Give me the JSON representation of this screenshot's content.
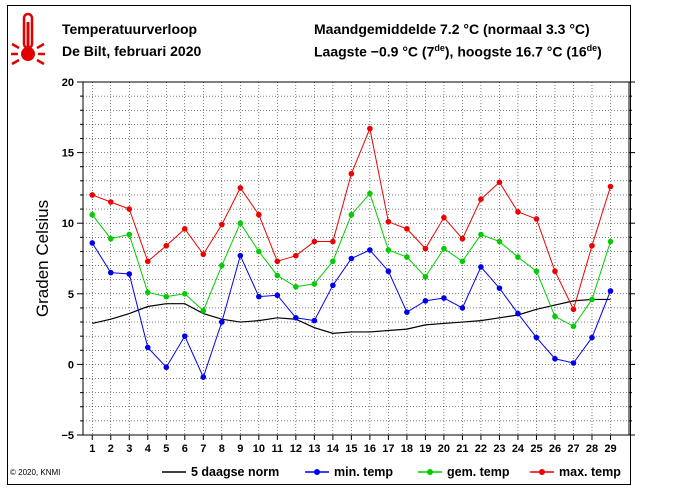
{
  "header": {
    "title": "Temperatuurverloop",
    "subtitle": "De Bilt, februari 2020",
    "monthly_avg": "Maandgemiddelde 7.2 °C (normaal 3.3 °C)",
    "extremes_pre": "Laagste −0.9 °C (7",
    "extremes_sup1": "de",
    "extremes_mid": "), hoogste 16.7 °C (16",
    "extremes_sup2": "de",
    "extremes_post": ")"
  },
  "copyright": "© 2020, KNMI",
  "chart_data": {
    "type": "line",
    "xlabel": "",
    "ylabel": "Graden Celsius",
    "ylim": [
      -5,
      20
    ],
    "yticks": [
      -5,
      0,
      5,
      10,
      15,
      20
    ],
    "x": [
      1,
      2,
      3,
      4,
      5,
      6,
      7,
      8,
      9,
      10,
      11,
      12,
      13,
      14,
      15,
      16,
      17,
      18,
      19,
      20,
      21,
      22,
      23,
      24,
      25,
      26,
      27,
      28,
      29
    ],
    "legend": "bottom",
    "series": [
      {
        "name": "5 daagse norm",
        "color": "#000000",
        "markers": false,
        "values": [
          2.9,
          3.2,
          3.6,
          4.1,
          4.3,
          4.3,
          3.6,
          3.2,
          3.0,
          3.1,
          3.3,
          3.2,
          2.6,
          2.2,
          2.3,
          2.3,
          2.4,
          2.5,
          2.8,
          2.9,
          3.0,
          3.1,
          3.3,
          3.5,
          3.9,
          4.2,
          4.5,
          4.6,
          4.6
        ]
      },
      {
        "name": "min. temp",
        "color": "#0000ee",
        "markers": true,
        "values": [
          8.6,
          6.5,
          6.4,
          1.2,
          -0.2,
          2.0,
          -0.9,
          3.0,
          7.7,
          4.8,
          4.9,
          3.3,
          3.1,
          5.6,
          7.5,
          8.1,
          6.6,
          3.7,
          4.5,
          4.7,
          4.0,
          6.9,
          5.4,
          3.6,
          1.9,
          0.4,
          0.1,
          1.9,
          5.2
        ]
      },
      {
        "name": "gem. temp",
        "color": "#00cc00",
        "markers": true,
        "values": [
          10.6,
          8.9,
          9.2,
          5.1,
          4.8,
          5.0,
          3.8,
          7.0,
          10.0,
          8.0,
          6.3,
          5.5,
          5.7,
          7.3,
          10.6,
          12.1,
          8.1,
          7.6,
          6.2,
          8.2,
          7.3,
          9.2,
          8.7,
          7.6,
          6.6,
          3.4,
          2.7,
          4.6,
          8.7
        ]
      },
      {
        "name": "max. temp",
        "color": "#ee0000",
        "markers": true,
        "values": [
          12.0,
          11.5,
          11.0,
          7.3,
          8.4,
          9.6,
          7.8,
          9.9,
          12.5,
          10.6,
          7.3,
          7.7,
          8.7,
          8.7,
          13.5,
          16.7,
          10.1,
          9.6,
          8.2,
          10.4,
          8.9,
          11.7,
          12.9,
          10.8,
          10.3,
          6.6,
          3.9,
          8.4,
          12.6
        ]
      }
    ]
  }
}
